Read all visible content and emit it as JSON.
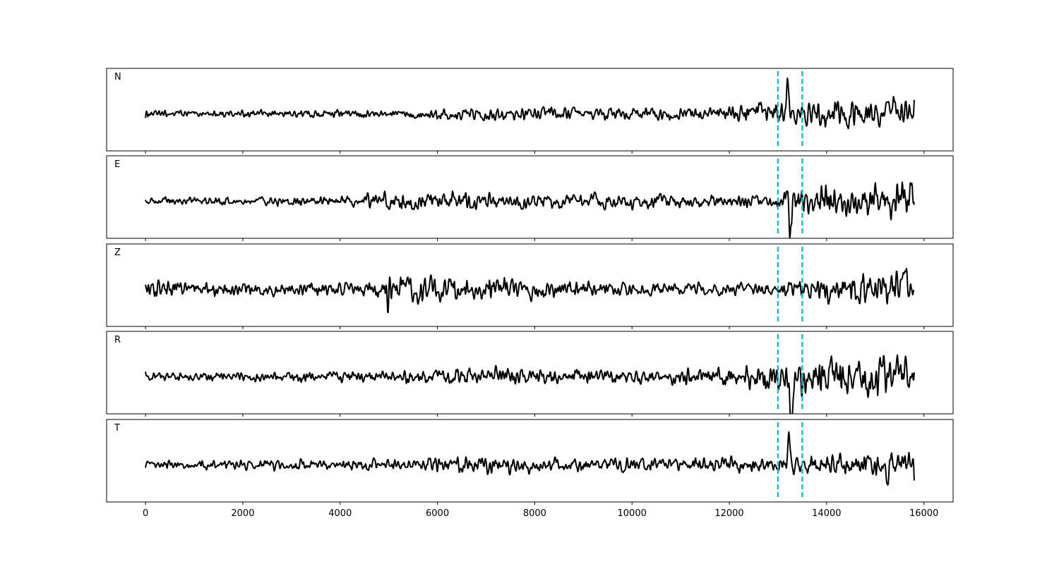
{
  "chart_data": {
    "type": "line",
    "title": "",
    "xlabel": "",
    "ylabel": "",
    "xlim": [
      -800,
      16600
    ],
    "x_ticks": [
      0,
      2000,
      4000,
      6000,
      8000,
      10000,
      12000,
      14000,
      16000
    ],
    "x_tick_labels": [
      "0",
      "2000",
      "4000",
      "6000",
      "8000",
      "10000",
      "12000",
      "14000",
      "16000"
    ],
    "x_end": 15800,
    "markers": {
      "x": [
        13000,
        13500
      ],
      "color": "#17becf",
      "style": "dashed"
    },
    "trace_color": "#000000",
    "panels": [
      {
        "label": "N",
        "envelope": [
          [
            0,
            0.25
          ],
          [
            5500,
            0.3
          ],
          [
            6000,
            0.45
          ],
          [
            9500,
            0.45
          ],
          [
            10500,
            0.5
          ],
          [
            12000,
            0.55
          ],
          [
            12800,
            0.9
          ],
          [
            13500,
            0.7
          ],
          [
            14000,
            1.0
          ],
          [
            15800,
            1.1
          ]
        ],
        "events": [
          {
            "x": 13200,
            "amp": 1.9,
            "width": 60
          }
        ]
      },
      {
        "label": "E",
        "envelope": [
          [
            0,
            0.25
          ],
          [
            4500,
            0.45
          ],
          [
            5000,
            0.75
          ],
          [
            6500,
            0.85
          ],
          [
            7000,
            0.6
          ],
          [
            11000,
            0.55
          ],
          [
            12000,
            0.5
          ],
          [
            13000,
            0.5
          ],
          [
            13200,
            1.5
          ],
          [
            14000,
            1.3
          ],
          [
            15800,
            1.6
          ]
        ],
        "events": [
          {
            "x": 13250,
            "amp": -2.0,
            "width": 70
          }
        ]
      },
      {
        "label": "Z",
        "envelope": [
          [
            0,
            0.55
          ],
          [
            4500,
            0.5
          ],
          [
            5000,
            1.0
          ],
          [
            7000,
            0.85
          ],
          [
            9000,
            0.6
          ],
          [
            11000,
            0.45
          ],
          [
            12500,
            0.45
          ],
          [
            13500,
            0.6
          ],
          [
            14000,
            1.0
          ],
          [
            15800,
            1.3
          ]
        ],
        "events": [
          {
            "x": 4980,
            "amp": -1.6,
            "width": 35
          },
          {
            "x": 15600,
            "amp": 1.6,
            "width": 80
          }
        ]
      },
      {
        "label": "R",
        "envelope": [
          [
            0,
            0.3
          ],
          [
            5000,
            0.45
          ],
          [
            6500,
            0.75
          ],
          [
            8500,
            0.55
          ],
          [
            10500,
            0.55
          ],
          [
            12000,
            0.75
          ],
          [
            12500,
            1.0
          ],
          [
            13200,
            1.4
          ],
          [
            14000,
            1.5
          ],
          [
            15800,
            1.6
          ]
        ],
        "events": [
          {
            "x": 13280,
            "amp": -1.8,
            "width": 70
          },
          {
            "x": 15150,
            "amp": 1.4,
            "width": 60
          }
        ]
      },
      {
        "label": "T",
        "envelope": [
          [
            0,
            0.3
          ],
          [
            5500,
            0.45
          ],
          [
            6500,
            0.65
          ],
          [
            9000,
            0.5
          ],
          [
            11000,
            0.5
          ],
          [
            12500,
            0.55
          ],
          [
            13000,
            0.5
          ],
          [
            13700,
            0.75
          ],
          [
            15000,
            0.8
          ],
          [
            15800,
            1.0
          ]
        ],
        "events": [
          {
            "x": 13230,
            "amp": 2.0,
            "width": 55
          },
          {
            "x": 15250,
            "amp": -1.0,
            "width": 60
          }
        ]
      }
    ]
  }
}
